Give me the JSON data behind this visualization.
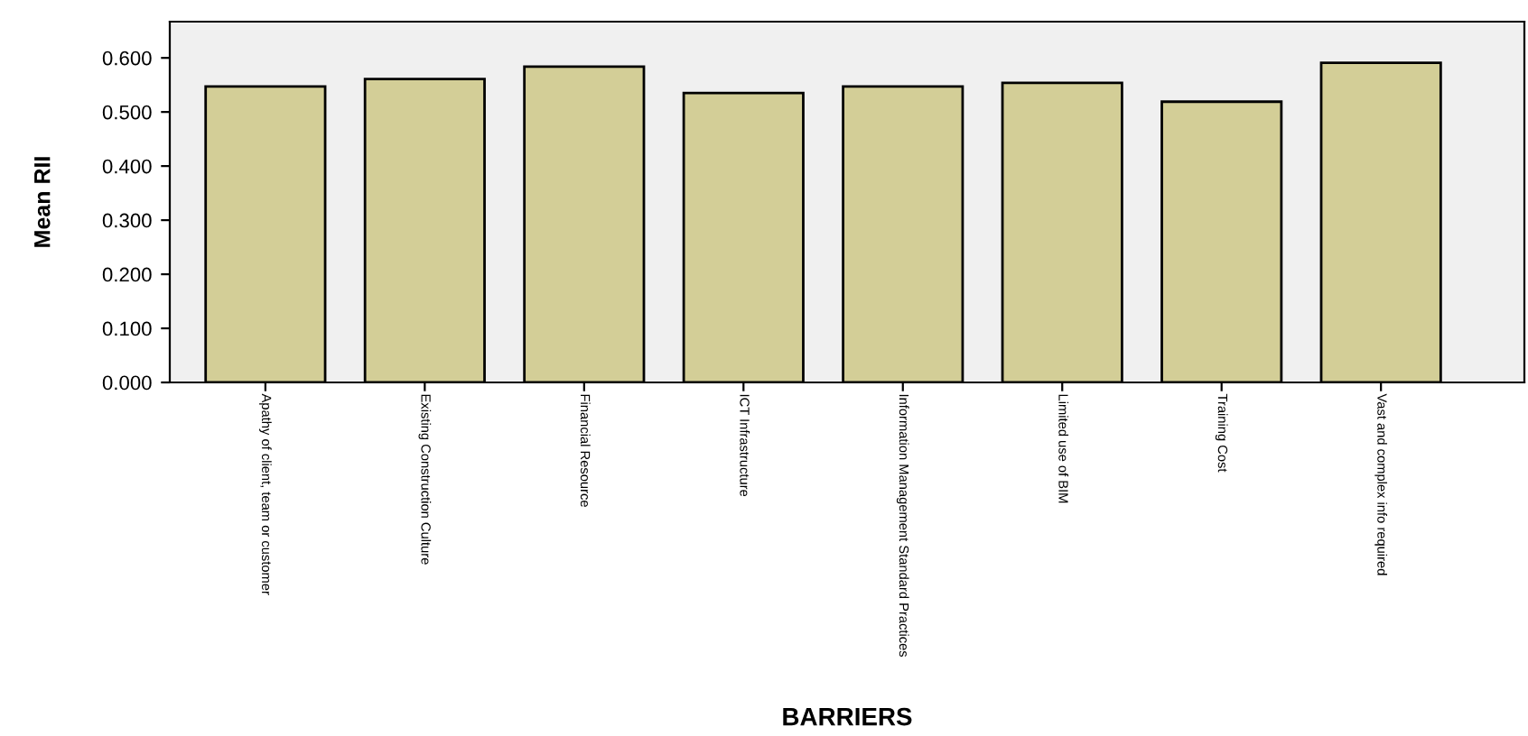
{
  "chart_data": {
    "type": "bar",
    "xlabel": "BARRIERS",
    "ylabel": "Mean RII",
    "categories": [
      "Apathy of client, team or customer",
      "Existing Construction Culture",
      "Financial Resource",
      "ICT Infrastructure",
      "Information Management Standard Practices",
      "Limited use of BIM",
      "Training Cost",
      "Vast and complex info required"
    ],
    "values": [
      0.547,
      0.561,
      0.584,
      0.535,
      0.547,
      0.554,
      0.519,
      0.591
    ],
    "color": "#d3ce97",
    "ylim": [
      0,
      0.667
    ],
    "yticks": [
      {
        "value": 0,
        "label": "0.000"
      },
      {
        "value": 0.1,
        "label": "0.100"
      },
      {
        "value": 0.2,
        "label": "0.200"
      },
      {
        "value": 0.3,
        "label": "0.300"
      },
      {
        "value": 0.4,
        "label": "0.400"
      },
      {
        "value": 0.5,
        "label": "0.500"
      },
      {
        "value": 0.6,
        "label": "0.600"
      }
    ],
    "grid": false
  }
}
